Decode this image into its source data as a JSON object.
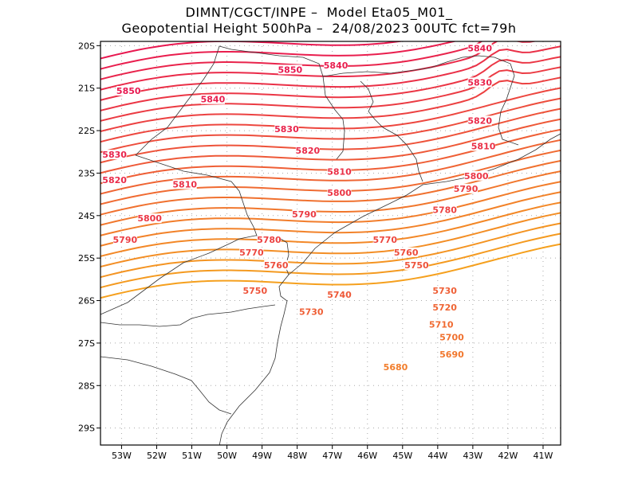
{
  "title_line1": "DIMNT/CGCT/INPE –  Model Eta05_M01_",
  "title_line2": "Geopotential Height 500hPa –  24/08/2023 00UTC fct=79h",
  "chart_data": {
    "type": "contour_map",
    "variable": "Geopotential Height 500hPa",
    "units": "gpm",
    "contour_interval": 10,
    "lon_range": [
      -53.6,
      -40.5
    ],
    "lat_range": [
      -29.4,
      -19.9
    ],
    "x_ticks": [
      "53W",
      "52W",
      "51W",
      "50W",
      "49W",
      "48W",
      "47W",
      "46W",
      "45W",
      "44W",
      "43W",
      "42W",
      "41W"
    ],
    "y_ticks": [
      "20S",
      "21S",
      "22S",
      "23S",
      "24S",
      "25S",
      "26S",
      "27S",
      "28S",
      "29S"
    ],
    "contour_labels": [
      {
        "text": "5850",
        "lon": -52.8,
        "lat": -21.1
      },
      {
        "text": "5850",
        "lon": -48.2,
        "lat": -20.6
      },
      {
        "text": "5840",
        "lon": -50.4,
        "lat": -21.3
      },
      {
        "text": "5840",
        "lon": -46.9,
        "lat": -20.5
      },
      {
        "text": "5840",
        "lon": -42.8,
        "lat": -20.1
      },
      {
        "text": "5830",
        "lon": -53.2,
        "lat": -22.6
      },
      {
        "text": "5830",
        "lon": -48.3,
        "lat": -22.0
      },
      {
        "text": "5830",
        "lon": -42.8,
        "lat": -20.9
      },
      {
        "text": "5820",
        "lon": -53.2,
        "lat": -23.2
      },
      {
        "text": "5820",
        "lon": -47.7,
        "lat": -22.5
      },
      {
        "text": "5820",
        "lon": -42.8,
        "lat": -21.8
      },
      {
        "text": "5810",
        "lon": -51.2,
        "lat": -23.3
      },
      {
        "text": "5810",
        "lon": -46.8,
        "lat": -23.0
      },
      {
        "text": "5810",
        "lon": -42.7,
        "lat": -22.4
      },
      {
        "text": "5800",
        "lon": -52.2,
        "lat": -24.1
      },
      {
        "text": "5800",
        "lon": -46.8,
        "lat": -23.5
      },
      {
        "text": "5800",
        "lon": -42.9,
        "lat": -23.1
      },
      {
        "text": "5790",
        "lon": -52.9,
        "lat": -24.6
      },
      {
        "text": "5790",
        "lon": -47.8,
        "lat": -24.0
      },
      {
        "text": "5790",
        "lon": -43.2,
        "lat": -23.4
      },
      {
        "text": "5780",
        "lon": -48.8,
        "lat": -24.6
      },
      {
        "text": "5780",
        "lon": -43.8,
        "lat": -23.9
      },
      {
        "text": "5770",
        "lon": -49.3,
        "lat": -24.9
      },
      {
        "text": "5770",
        "lon": -45.5,
        "lat": -24.6
      },
      {
        "text": "5760",
        "lon": -48.6,
        "lat": -25.2
      },
      {
        "text": "5760",
        "lon": -44.9,
        "lat": -24.9
      },
      {
        "text": "5750",
        "lon": -49.2,
        "lat": -25.8
      },
      {
        "text": "5750",
        "lon": -44.6,
        "lat": -25.2
      },
      {
        "text": "5740",
        "lon": -46.8,
        "lat": -25.9
      },
      {
        "text": "5730",
        "lon": -47.6,
        "lat": -26.3
      },
      {
        "text": "5730",
        "lon": -43.8,
        "lat": -25.8
      },
      {
        "text": "5720",
        "lon": -43.8,
        "lat": -26.2
      },
      {
        "text": "5710",
        "lon": -43.9,
        "lat": -26.6
      },
      {
        "text": "5700",
        "lon": -43.6,
        "lat": -26.9
      },
      {
        "text": "5690",
        "lon": -43.6,
        "lat": -27.3
      },
      {
        "text": "5680",
        "lon": -45.2,
        "lat": -27.6
      }
    ]
  }
}
